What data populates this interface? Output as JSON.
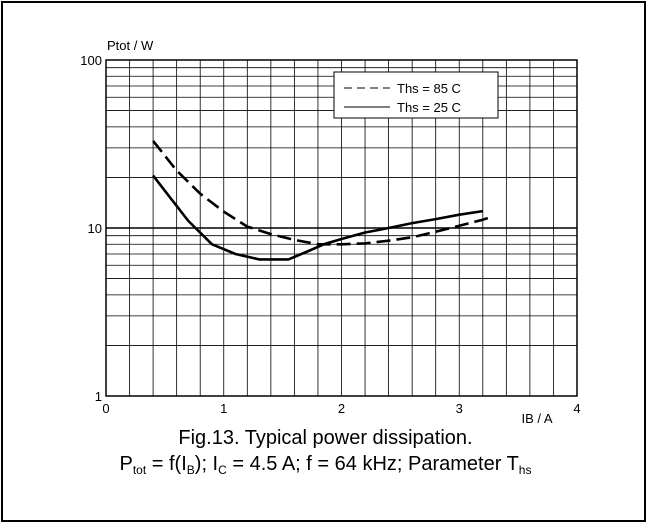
{
  "chart_data": {
    "type": "line",
    "ylabel": "Ptot / W",
    "xlabel": "IB / A",
    "xlim": [
      0,
      4
    ],
    "ylim": [
      1,
      100
    ],
    "y_scale": "log",
    "x_ticks": [
      "0",
      "1",
      "2",
      "3",
      "4"
    ],
    "y_ticks": [
      "1",
      "10",
      "100"
    ],
    "grid": true,
    "legend_position": "top-right",
    "series": [
      {
        "name": "Ths = 85 C",
        "style": "dashed",
        "x": [
          0.4,
          0.6,
          0.8,
          1.0,
          1.2,
          1.4,
          1.6,
          1.8,
          2.0,
          2.2,
          2.4,
          2.6,
          2.8,
          3.0,
          3.2,
          3.25
        ],
        "y": [
          33,
          22,
          16,
          12.5,
          10.2,
          9.2,
          8.5,
          8.0,
          8.0,
          8.1,
          8.4,
          8.8,
          9.5,
          10.3,
          11.2,
          11.5
        ]
      },
      {
        "name": "Ths = 25 C",
        "style": "solid",
        "x": [
          0.4,
          0.55,
          0.7,
          0.9,
          1.1,
          1.3,
          1.55,
          1.7,
          1.85,
          2.0,
          2.2,
          2.4,
          2.6,
          2.8,
          3.0,
          3.2
        ],
        "y": [
          20.5,
          15,
          11,
          8.0,
          7.0,
          6.5,
          6.5,
          7.2,
          8.0,
          8.6,
          9.4,
          10.0,
          10.7,
          11.3,
          12.0,
          12.6
        ]
      }
    ]
  },
  "caption": {
    "line1": "Fig.13.  Typical power dissipation.",
    "line2_parts": [
      "P",
      "tot",
      " = f(I",
      "B",
      "); I",
      "C",
      " = 4.5 A; f = 64 kHz; Parameter T",
      "hs"
    ]
  }
}
